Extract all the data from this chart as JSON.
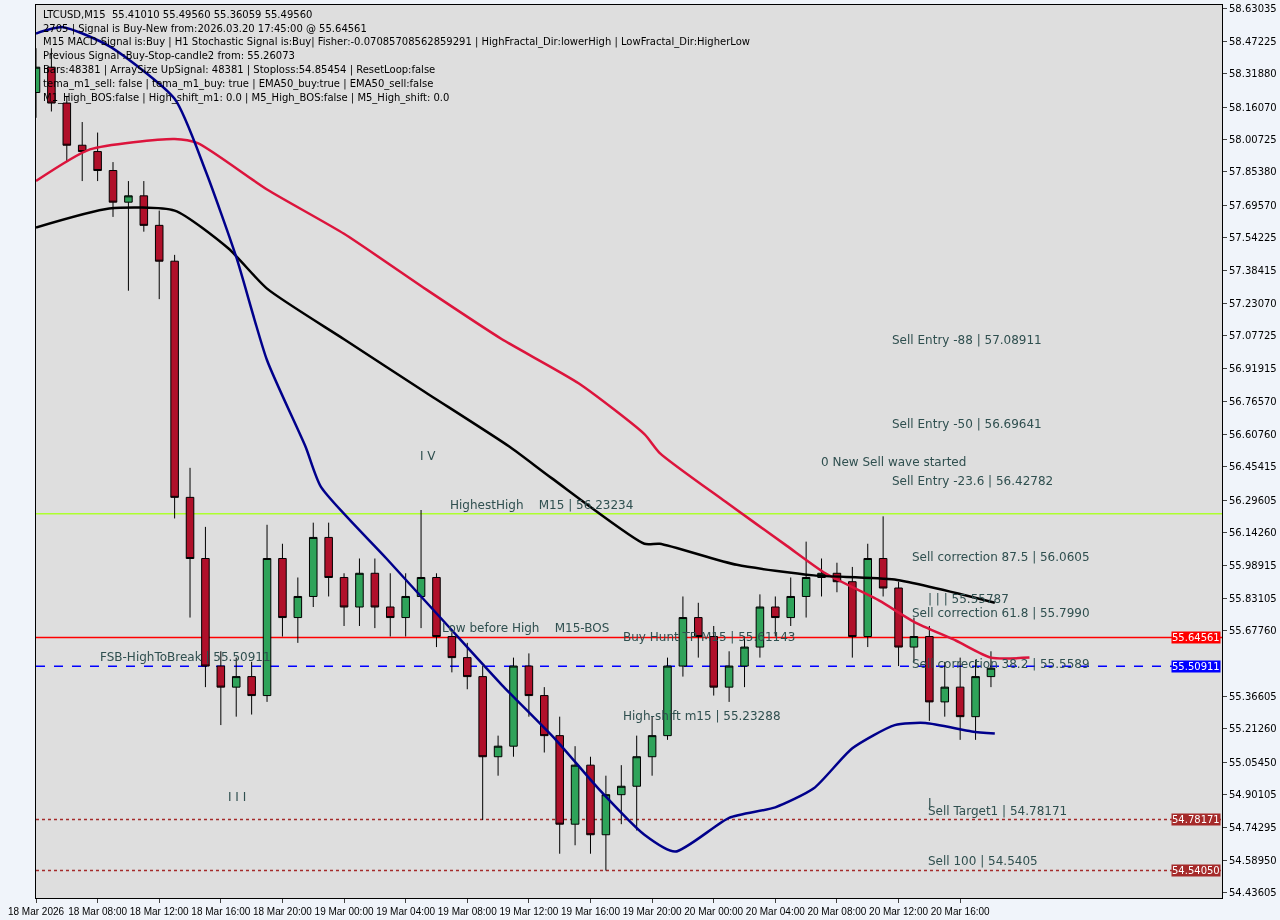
{
  "chart_data": {
    "type": "candlestick",
    "x": [
      "2026-03-18T04:00",
      "2026-03-18T05:00",
      "2026-03-18T06:00",
      "2026-03-18T07:00",
      "2026-03-18T08:00",
      "2026-03-18T09:00",
      "2026-03-18T10:00",
      "2026-03-18T11:00",
      "2026-03-18T12:00",
      "2026-03-18T13:00",
      "2026-03-18T14:00",
      "2026-03-18T15:00",
      "2026-03-18T16:00",
      "2026-03-18T17:00",
      "2026-03-18T18:00",
      "2026-03-18T19:00",
      "2026-03-18T20:00",
      "2026-03-18T21:00",
      "2026-03-18T22:00",
      "2026-03-18T23:00",
      "2026-03-19T00:00",
      "2026-03-19T01:00",
      "2026-03-19T02:00",
      "2026-03-19T03:00",
      "2026-03-19T04:00",
      "2026-03-19T05:00",
      "2026-03-19T06:00",
      "2026-03-19T07:00",
      "2026-03-19T08:00",
      "2026-03-19T09:00",
      "2026-03-19T10:00",
      "2026-03-19T11:00",
      "2026-03-19T12:00",
      "2026-03-19T13:00",
      "2026-03-19T14:00",
      "2026-03-19T15:00",
      "2026-03-19T16:00",
      "2026-03-19T17:00",
      "2026-03-19T18:00",
      "2026-03-19T19:00",
      "2026-03-19T20:00",
      "2026-03-19T21:00",
      "2026-03-19T22:00",
      "2026-03-19T23:00",
      "2026-03-20T00:00",
      "2026-03-20T01:00",
      "2026-03-20T02:00",
      "2026-03-20T03:00",
      "2026-03-20T04:00",
      "2026-03-20T05:00",
      "2026-03-20T06:00",
      "2026-03-20T07:00",
      "2026-03-20T08:00",
      "2026-03-20T09:00",
      "2026-03-20T10:00",
      "2026-03-20T11:00",
      "2026-03-20T12:00",
      "2026-03-20T13:00",
      "2026-03-20T14:00",
      "2026-03-20T15:00",
      "2026-03-20T16:00",
      "2026-03-20T17:00",
      "2026-03-20T18:00"
    ],
    "ohlc": [
      [
        58.23,
        58.44,
        58.11,
        58.35
      ],
      [
        58.35,
        58.44,
        58.14,
        58.18
      ],
      [
        58.18,
        58.21,
        57.9,
        57.98
      ],
      [
        57.98,
        58.09,
        57.81,
        57.95
      ],
      [
        57.95,
        58.04,
        57.81,
        57.86
      ],
      [
        57.86,
        57.9,
        57.64,
        57.71
      ],
      [
        57.71,
        57.81,
        57.29,
        57.74
      ],
      [
        57.74,
        57.81,
        57.57,
        57.6
      ],
      [
        57.6,
        57.67,
        57.25,
        57.43
      ],
      [
        57.43,
        57.46,
        56.21,
        56.31
      ],
      [
        56.31,
        56.45,
        55.74,
        56.02
      ],
      [
        56.02,
        56.17,
        55.41,
        55.51
      ],
      [
        55.51,
        55.58,
        55.23,
        55.41
      ],
      [
        55.41,
        55.55,
        55.27,
        55.46
      ],
      [
        55.46,
        55.53,
        55.28,
        55.37
      ],
      [
        55.37,
        56.18,
        55.34,
        56.02
      ],
      [
        56.02,
        56.09,
        55.65,
        55.74
      ],
      [
        55.74,
        55.93,
        55.62,
        55.84
      ],
      [
        55.84,
        56.19,
        55.79,
        56.12
      ],
      [
        56.12,
        56.19,
        55.84,
        55.93
      ],
      [
        55.93,
        55.95,
        55.7,
        55.79
      ],
      [
        55.79,
        56.02,
        55.7,
        55.95
      ],
      [
        55.95,
        56.02,
        55.69,
        55.79
      ],
      [
        55.79,
        55.95,
        55.65,
        55.74
      ],
      [
        55.74,
        55.95,
        55.65,
        55.84
      ],
      [
        55.84,
        56.25,
        55.69,
        55.93
      ],
      [
        55.93,
        55.95,
        55.6,
        55.65
      ],
      [
        55.65,
        55.67,
        55.48,
        55.55
      ],
      [
        55.55,
        55.62,
        55.4,
        55.46
      ],
      [
        55.46,
        55.51,
        54.78,
        55.08
      ],
      [
        55.08,
        55.18,
        54.99,
        55.13
      ],
      [
        55.13,
        55.55,
        55.08,
        55.51
      ],
      [
        55.51,
        55.57,
        55.27,
        55.37
      ],
      [
        55.37,
        55.41,
        55.1,
        55.18
      ],
      [
        55.18,
        55.27,
        54.62,
        54.76
      ],
      [
        54.76,
        55.13,
        54.66,
        55.04
      ],
      [
        55.04,
        55.08,
        54.62,
        54.71
      ],
      [
        54.71,
        54.99,
        54.54,
        54.9
      ],
      [
        54.9,
        55.04,
        54.76,
        54.94
      ],
      [
        54.94,
        55.18,
        54.73,
        55.08
      ],
      [
        55.08,
        55.27,
        54.99,
        55.18
      ],
      [
        55.18,
        55.55,
        55.16,
        55.51
      ],
      [
        55.51,
        55.84,
        55.46,
        55.74
      ],
      [
        55.74,
        55.81,
        55.55,
        55.65
      ],
      [
        55.65,
        55.7,
        55.37,
        55.41
      ],
      [
        55.41,
        55.58,
        55.34,
        55.51
      ],
      [
        55.51,
        55.65,
        55.41,
        55.6
      ],
      [
        55.6,
        55.85,
        55.55,
        55.79
      ],
      [
        55.79,
        55.84,
        55.65,
        55.74
      ],
      [
        55.74,
        55.93,
        55.7,
        55.84
      ],
      [
        55.84,
        56.1,
        55.74,
        55.93
      ],
      [
        55.93,
        56.02,
        55.84,
        55.95
      ],
      [
        55.95,
        56.0,
        55.86,
        55.91
      ],
      [
        55.91,
        55.98,
        55.55,
        55.65
      ],
      [
        55.65,
        56.09,
        55.6,
        56.02
      ],
      [
        56.02,
        56.22,
        55.84,
        55.88
      ],
      [
        55.88,
        55.91,
        55.51,
        55.6
      ],
      [
        55.6,
        55.74,
        55.53,
        55.65
      ],
      [
        55.65,
        55.7,
        55.25,
        55.34
      ],
      [
        55.34,
        55.53,
        55.27,
        55.41
      ],
      [
        55.41,
        55.55,
        55.16,
        55.27
      ],
      [
        55.27,
        55.54,
        55.16,
        55.46
      ],
      [
        55.46,
        55.58,
        55.41,
        55.5
      ]
    ],
    "series": [
      {
        "type": "line",
        "color": "#dc143c",
        "x": [
          "2026-03-18T04:00",
          "2026-03-18T07:30",
          "2026-03-18T13:00",
          "2026-03-18T14:30",
          "2026-03-18T19:00",
          "2026-03-19T00:00",
          "2026-03-19T05:15",
          "2026-03-19T10:15",
          "2026-03-19T15:15",
          "2026-03-19T19:30",
          "2026-03-19T20:30",
          "2026-03-20T00:45",
          "2026-03-20T04:45",
          "2026-03-20T07:15",
          "2026-03-20T10:45",
          "2026-03-20T13:00",
          "2026-03-20T15:45",
          "2026-03-20T18:00",
          "2026-03-20T20:30"
        ],
        "values": [
          57.81,
          57.96,
          58.01,
          57.99,
          57.77,
          57.56,
          57.3,
          57.06,
          56.85,
          56.61,
          56.52,
          56.29,
          56.08,
          55.95,
          55.82,
          55.72,
          55.63,
          55.55,
          55.55
        ]
      },
      {
        "type": "line",
        "color": "#000000",
        "x": [
          "2026-03-18T04:00",
          "2026-03-18T08:45",
          "2026-03-18T13:00",
          "2026-03-18T16:30",
          "2026-03-18T19:00",
          "2026-03-19T00:00",
          "2026-03-19T05:15",
          "2026-03-19T10:45",
          "2026-03-19T13:30",
          "2026-03-19T19:30",
          "2026-03-19T20:30",
          "2026-03-20T01:30",
          "2026-03-20T06:30",
          "2026-03-20T11:45",
          "2026-03-20T18:15"
        ],
        "values": [
          57.59,
          57.68,
          57.67,
          57.49,
          57.3,
          57.06,
          56.81,
          56.55,
          56.4,
          56.09,
          56.09,
          55.99,
          55.94,
          55.92,
          55.81
        ]
      },
      {
        "type": "line",
        "color": "#00008b",
        "x": [
          "2026-03-18T04:00",
          "2026-03-18T05:45",
          "2026-03-18T08:45",
          "2026-03-18T13:00",
          "2026-03-18T15:00",
          "2026-03-18T17:00",
          "2026-03-18T19:00",
          "2026-03-18T21:30",
          "2026-03-18T22:30",
          "2026-03-19T02:45",
          "2026-03-19T06:30",
          "2026-03-19T10:15",
          "2026-03-19T13:45",
          "2026-03-19T16:30",
          "2026-03-19T19:30",
          "2026-03-19T21:30",
          "2026-03-20T01:00",
          "2026-03-20T04:00",
          "2026-03-20T06:30",
          "2026-03-20T09:00",
          "2026-03-20T11:45",
          "2026-03-20T13:45",
          "2026-03-20T16:45",
          "2026-03-20T18:15"
        ],
        "values": [
          58.51,
          58.54,
          58.45,
          58.2,
          57.86,
          57.45,
          56.96,
          56.55,
          56.36,
          56.02,
          55.72,
          55.42,
          55.16,
          54.93,
          54.71,
          54.63,
          54.79,
          54.84,
          54.93,
          55.12,
          55.23,
          55.24,
          55.2,
          55.19
        ]
      }
    ],
    "xlim": [
      "2026-03-18T04:00",
      "2026-03-21T09:00"
    ],
    "ylim": [
      54.41,
      58.645
    ],
    "xticks": [
      {
        "value": "2026-03-18T04:00",
        "label": "18 Mar 2026"
      },
      {
        "value": "2026-03-18T08:00",
        "label": "18 Mar 08:00"
      },
      {
        "value": "2026-03-18T12:00",
        "label": "18 Mar 12:00"
      },
      {
        "value": "2026-03-18T16:00",
        "label": "18 Mar 16:00"
      },
      {
        "value": "2026-03-18T20:00",
        "label": "18 Mar 20:00"
      },
      {
        "value": "2026-03-19T00:00",
        "label": "19 Mar 00:00"
      },
      {
        "value": "2026-03-19T04:00",
        "label": "19 Mar 04:00"
      },
      {
        "value": "2026-03-19T08:00",
        "label": "19 Mar 08:00"
      },
      {
        "value": "2026-03-19T12:00",
        "label": "19 Mar 12:00"
      },
      {
        "value": "2026-03-19T16:00",
        "label": "19 Mar 16:00"
      },
      {
        "value": "2026-03-19T20:00",
        "label": "19 Mar 20:00"
      },
      {
        "value": "2026-03-20T00:00",
        "label": "20 Mar 00:00"
      },
      {
        "value": "2026-03-20T04:00",
        "label": "20 Mar 04:00"
      },
      {
        "value": "2026-03-20T08:00",
        "label": "20 Mar 08:00"
      },
      {
        "value": "2026-03-20T12:00",
        "label": "20 Mar 12:00"
      },
      {
        "value": "2026-03-20T16:00",
        "label": "20 Mar 16:00"
      }
    ],
    "yticks": [
      {
        "value": 58.63035,
        "label": "58.63035"
      },
      {
        "value": 58.47225,
        "label": "58.47225"
      },
      {
        "value": 58.3188,
        "label": "58.31880"
      },
      {
        "value": 58.1607,
        "label": "58.16070"
      },
      {
        "value": 58.00725,
        "label": "58.00725"
      },
      {
        "value": 57.8538,
        "label": "57.85380"
      },
      {
        "value": 57.6957,
        "label": "57.69570"
      },
      {
        "value": 57.54225,
        "label": "57.54225"
      },
      {
        "value": 57.38415,
        "label": "57.38415"
      },
      {
        "value": 57.2307,
        "label": "57.23070"
      },
      {
        "value": 57.07725,
        "label": "57.07725"
      },
      {
        "value": 56.91915,
        "label": "56.91915"
      },
      {
        "value": 56.7657,
        "label": "56.76570"
      },
      {
        "value": 56.6076,
        "label": "56.60760"
      },
      {
        "value": 56.45415,
        "label": "56.45415"
      },
      {
        "value": 56.29605,
        "label": "56.29605"
      },
      {
        "value": 56.1426,
        "label": "56.14260"
      },
      {
        "value": 55.98915,
        "label": "55.98915"
      },
      {
        "value": 55.83105,
        "label": "55.83105"
      },
      {
        "value": 55.6776,
        "label": "55.67760"
      },
      {
        "value": 55.36605,
        "label": "55.36605"
      },
      {
        "value": 55.2126,
        "label": "55.21260"
      },
      {
        "value": 55.0545,
        "label": "55.05450"
      },
      {
        "value": 54.90105,
        "label": "54.90105"
      },
      {
        "value": 54.74295,
        "label": "54.74295"
      },
      {
        "value": 54.5895,
        "label": "54.58950"
      },
      {
        "value": 54.43605,
        "label": "54.43605"
      }
    ],
    "ref_lines": [
      {
        "axis": "y",
        "value": 55.64561,
        "label": "55.64561",
        "color": "#ff0000",
        "line_style": "solid"
      },
      {
        "axis": "y",
        "value": 55.50911,
        "label": "55.50911",
        "color": "#0000ff",
        "line_style": "dashed"
      },
      {
        "axis": "y",
        "value": 54.78171,
        "label": "54.78171",
        "color": "#a52a2a",
        "line_style": "dotted"
      },
      {
        "axis": "y",
        "value": 54.5405,
        "label": "54.54050",
        "color": "#a52a2a",
        "line_style": "dotted"
      },
      {
        "axis": "y",
        "value": 56.23234,
        "color": "#adff2f",
        "line_style": "solid"
      }
    ],
    "annotations": [
      "LTCUSD,M15  55.41010 55.49560 55.36059 55.49560",
      "2705 | Signal is Buy-New from:2026.03.20 17:45:00 @ 55.64561",
      "M15 MACD Signal is:Buy | H1 Stochastic Signal is:Buy| Fisher:-0.07085708562859291 | HighFractal_Dir:lowerHigh | LowFractal_Dir:HigherLow",
      "Previous Signal :Buy-Stop-candle2 from: 55.26073",
      "Bars:48381 | ArraySize UpSignal: 48381 | Stoploss:54.85454 | ResetLoop:false",
      "tema_m1_sell: false | tema_m1_buy: true | EMA50_buy:true | EMA50_sell:false",
      "M1_High_BOS:false | High_shift_m1: 0.0 | M5_High_BOS:false | M5_High_shift: 0.0",
      "Sell Entry -88 | 57.08911",
      "Sell Entry -50 | 56.69641",
      "Sell Entry -23.6 | 56.42782",
      "0 New Sell wave started",
      "Sell correction 87.5 | 56.0605",
      "Sell correction 61.8 | 55.7990",
      "Buy Hunt TP M15 | 55.61143",
      "High-shift m15 | 55.23288",
      "I V",
      "I I I",
      "I",
      "Sell correction 38.2 | 55.5589",
      "| | | 55.55787",
      {
        "text": "Sell Target1 | 54.78171",
        "x": "2026-03-20T13:45",
        "y": 54.78171
      },
      {
        "text": "Sell 100 | 54.5405",
        "x": "2026-03-20T13:45",
        "y": 54.5405
      },
      {
        "text": "HighestHigh    M15 | 56.23234",
        "x": "2026-03-19T06:45",
        "y": 56.23234
      },
      {
        "text": "Low before High    M15-BOS",
        "x": "2026-03-19T06:15",
        "y": 55.64561
      },
      {
        "text": "FSB-HighToBreak | 55.50911",
        "x": "2026-03-18T08:00",
        "y": 55.50911
      }
    ],
    "grid": false
  }
}
